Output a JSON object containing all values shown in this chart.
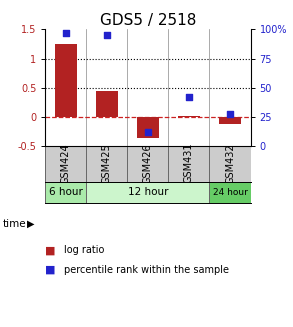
{
  "title": "GDS5 / 2518",
  "samples": [
    "GSM424",
    "GSM425",
    "GSM426",
    "GSM431",
    "GSM432"
  ],
  "log_ratio": [
    1.25,
    0.45,
    -0.37,
    0.02,
    -0.12
  ],
  "percentile_rank": [
    97,
    95,
    12,
    42,
    27
  ],
  "left_ylim": [
    -0.5,
    1.5
  ],
  "right_ylim": [
    0,
    100
  ],
  "bar_color": "#b22222",
  "dot_color": "#2222cc",
  "time_groups": [
    {
      "label": "6 hour",
      "indices": [
        0
      ],
      "color": "#aaeaaa"
    },
    {
      "label": "12 hour",
      "indices": [
        1,
        2,
        3
      ],
      "color": "#ccf5cc"
    },
    {
      "label": "24 hour",
      "indices": [
        4
      ],
      "color": "#66cc66"
    }
  ],
  "dotted_lines": [
    0.5,
    1.0
  ],
  "zero_line_color": "#cc2222",
  "bg_color": "#ffffff",
  "sample_box_color": "#cccccc",
  "title_fontsize": 11,
  "tick_fontsize": 7,
  "sample_fontsize": 7
}
